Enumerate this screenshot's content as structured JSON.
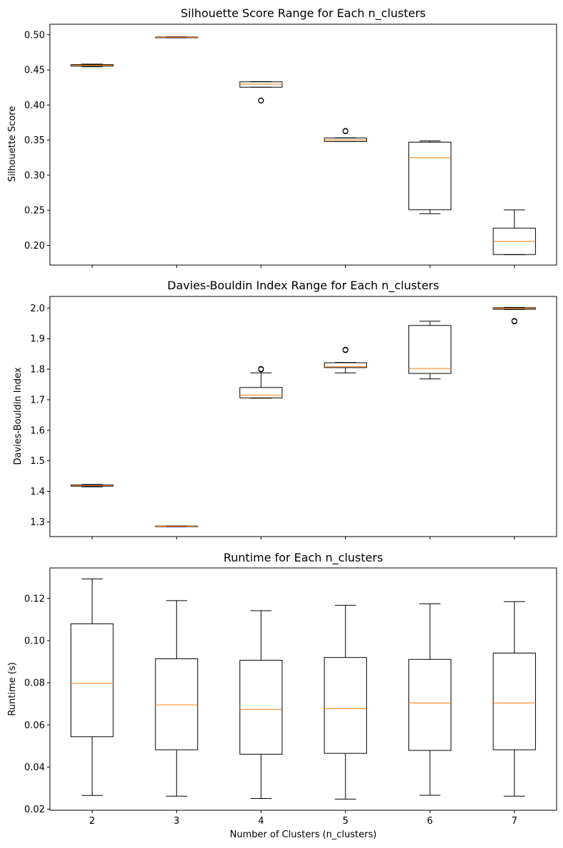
{
  "chart_data": [
    {
      "type": "boxplot",
      "title": "Silhouette Score Range for Each n_clusters",
      "xlabel": "",
      "ylabel": "Silhouette Score",
      "categories": [
        "2",
        "3",
        "4",
        "5",
        "6",
        "7"
      ],
      "ylim": [
        0.172,
        0.515
      ],
      "yticks": [
        "0.20",
        "0.25",
        "0.30",
        "0.35",
        "0.40",
        "0.45",
        "0.50"
      ],
      "show_xticklabels": false,
      "boxes": [
        {
          "whislo": 0.4545,
          "q1": 0.4553,
          "med": 0.4567,
          "q3": 0.4575,
          "whishi": 0.4582,
          "fliers": []
        },
        {
          "whislo": 0.4956,
          "q1": 0.4958,
          "med": 0.4963,
          "q3": 0.4968,
          "whishi": 0.497,
          "fliers": []
        },
        {
          "whislo": 0.4253,
          "q1": 0.4254,
          "med": 0.4296,
          "q3": 0.433,
          "whishi": 0.4333,
          "fliers": [
            0.4061,
            0.4066
          ]
        },
        {
          "whislo": 0.3479,
          "q1": 0.3481,
          "med": 0.3502,
          "q3": 0.3529,
          "whishi": 0.3533,
          "fliers": [
            0.3625,
            0.3631
          ]
        },
        {
          "whislo": 0.2452,
          "q1": 0.2509,
          "med": 0.3248,
          "q3": 0.3471,
          "whishi": 0.3488,
          "fliers": []
        },
        {
          "whislo": 0.1867,
          "q1": 0.187,
          "med": 0.2058,
          "q3": 0.2246,
          "whishi": 0.2505,
          "fliers": []
        }
      ]
    },
    {
      "type": "boxplot",
      "title": "Davies-Bouldin Index Range for Each n_clusters",
      "xlabel": "",
      "ylabel": "Davies-Bouldin Index",
      "categories": [
        "2",
        "3",
        "4",
        "5",
        "6",
        "7"
      ],
      "ylim": [
        1.252,
        2.038
      ],
      "yticks": [
        "1.3",
        "1.4",
        "1.5",
        "1.6",
        "1.7",
        "1.8",
        "1.9",
        "2.0"
      ],
      "show_xticklabels": false,
      "boxes": [
        {
          "whislo": 1.415,
          "q1": 1.417,
          "med": 1.419,
          "q3": 1.421,
          "whishi": 1.4225,
          "fliers": []
        },
        {
          "whislo": 1.284,
          "q1": 1.2845,
          "med": 1.2855,
          "q3": 1.2865,
          "whishi": 1.287,
          "fliers": []
        },
        {
          "whislo": 1.705,
          "q1": 1.706,
          "med": 1.715,
          "q3": 1.74,
          "whishi": 1.788,
          "fliers": [
            1.799,
            1.801
          ]
        },
        {
          "whislo": 1.788,
          "q1": 1.805,
          "med": 1.808,
          "q3": 1.821,
          "whishi": 1.822,
          "fliers": [
            1.862,
            1.864
          ]
        },
        {
          "whislo": 1.768,
          "q1": 1.786,
          "med": 1.802,
          "q3": 1.943,
          "whishi": 1.957,
          "fliers": []
        },
        {
          "whislo": 1.995,
          "q1": 1.996,
          "med": 1.999,
          "q3": 2.001,
          "whishi": 2.002,
          "fliers": [
            1.956,
            1.958
          ]
        }
      ]
    },
    {
      "type": "boxplot",
      "title": "Runtime for Each n_clusters",
      "xlabel": "Number of Clusters (n_clusters)",
      "ylabel": "Runtime (s)",
      "categories": [
        "2",
        "3",
        "4",
        "5",
        "6",
        "7"
      ],
      "ylim": [
        0.0195,
        0.1345
      ],
      "yticks": [
        "0.02",
        "0.04",
        "0.06",
        "0.08",
        "0.10",
        "0.12"
      ],
      "show_xticklabels": true,
      "boxes": [
        {
          "whislo": 0.0265,
          "q1": 0.0544,
          "med": 0.0797,
          "q3": 0.108,
          "whishi": 0.1293,
          "fliers": []
        },
        {
          "whislo": 0.0262,
          "q1": 0.0482,
          "med": 0.0695,
          "q3": 0.0914,
          "whishi": 0.119,
          "fliers": []
        },
        {
          "whislo": 0.0251,
          "q1": 0.0461,
          "med": 0.0674,
          "q3": 0.0907,
          "whishi": 0.1142,
          "fliers": []
        },
        {
          "whislo": 0.0248,
          "q1": 0.0465,
          "med": 0.0677,
          "q3": 0.092,
          "whishi": 0.1168,
          "fliers": []
        },
        {
          "whislo": 0.0266,
          "q1": 0.0479,
          "med": 0.0704,
          "q3": 0.0911,
          "whishi": 0.1175,
          "fliers": []
        },
        {
          "whislo": 0.0262,
          "q1": 0.0482,
          "med": 0.0704,
          "q3": 0.0941,
          "whishi": 0.1185,
          "fliers": []
        }
      ]
    }
  ],
  "colors": {
    "median": "#ff7f0e",
    "box": "#000000"
  }
}
